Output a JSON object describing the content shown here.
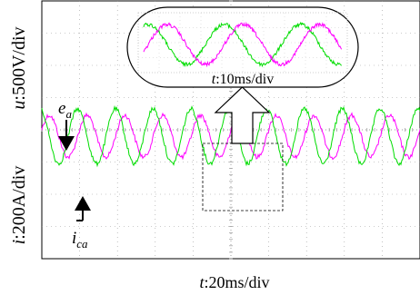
{
  "chart_data": {
    "type": "line",
    "title": "",
    "xlabel": {
      "var": "t",
      "text": ":20ms/div"
    },
    "ylabel_upper": {
      "var": "u",
      "text": ":500V/div"
    },
    "ylabel_lower": {
      "var": "i",
      "text": ":200A/div"
    },
    "x_divisions": 10,
    "y_divisions": 8,
    "grid": true,
    "x_range_ms": [
      0,
      200
    ],
    "main_trace": {
      "cycles_visible": 10,
      "series": [
        {
          "name": "e_a",
          "color": "#00dd00",
          "phase_deg": 0,
          "amplitude_div": 0.85,
          "center_div": -0.2
        },
        {
          "name": "i_ca",
          "color": "#ff00ff",
          "phase_deg": -90,
          "amplitude_div": 0.65,
          "center_div": -0.2
        }
      ]
    },
    "zoom_inset": {
      "time_scale": {
        "var": "t",
        "text": ":10ms/div"
      },
      "cycles_visible": 2.6,
      "series": [
        {
          "name": "green",
          "color": "#00dd00"
        },
        {
          "name": "magenta",
          "color": "#ff00ff"
        }
      ]
    },
    "annotations": [
      {
        "name": "e_a",
        "base": "e",
        "sub": "a"
      },
      {
        "name": "i_ca",
        "base": "i",
        "sub": "ca"
      }
    ]
  },
  "colors": {
    "green": "#00dd00",
    "magenta": "#ff00ff",
    "grid": "#9a9a9a",
    "frame": "#000000"
  }
}
